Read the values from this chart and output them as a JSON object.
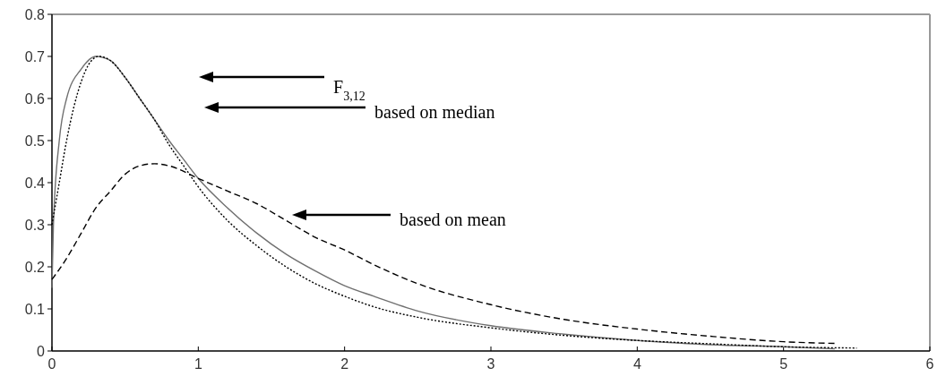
{
  "chart_data": {
    "type": "line",
    "xlim": [
      0,
      6
    ],
    "ylim": [
      0,
      0.8
    ],
    "xticks": [
      0,
      1,
      2,
      3,
      4,
      5,
      6
    ],
    "yticks": [
      0,
      0.1,
      0.2,
      0.3,
      0.4,
      0.5,
      0.6,
      0.7,
      0.8
    ],
    "grid": false,
    "marker": "none",
    "series": [
      {
        "color": "#707070",
        "line_style": "solid",
        "x": [
          0,
          0.01,
          0.05,
          0.1,
          0.2,
          0.3,
          0.4,
          0.5,
          0.6,
          0.7,
          0.8,
          0.9,
          1.0,
          1.2,
          1.4,
          1.6,
          1.8,
          2.0,
          2.2,
          2.5,
          3,
          3.5,
          4,
          4.5,
          5,
          5.35
        ],
        "values": [
          0.15,
          0.3,
          0.5,
          0.6,
          0.67,
          0.7,
          0.69,
          0.65,
          0.6,
          0.55,
          0.5,
          0.455,
          0.41,
          0.34,
          0.28,
          0.23,
          0.19,
          0.155,
          0.13,
          0.095,
          0.06,
          0.04,
          0.025,
          0.015,
          0.01,
          0.005
        ]
      },
      {
        "color": "#000000",
        "line_style": "dotted",
        "x": [
          0,
          0.05,
          0.1,
          0.2,
          0.25,
          0.32,
          0.4,
          0.5,
          0.6,
          0.7,
          0.8,
          0.9,
          1.0,
          1.2,
          1.4,
          1.6,
          1.8,
          2.0,
          2.2,
          2.5,
          3,
          3.5,
          4,
          4.5,
          5,
          5.5
        ],
        "values": [
          0.3,
          0.4,
          0.5,
          0.64,
          0.68,
          0.7,
          0.69,
          0.65,
          0.6,
          0.55,
          0.49,
          0.44,
          0.39,
          0.31,
          0.25,
          0.2,
          0.16,
          0.13,
          0.105,
          0.08,
          0.055,
          0.037,
          0.025,
          0.017,
          0.01,
          0.007
        ]
      },
      {
        "color": "#000000",
        "line_style": "dashed",
        "x": [
          0,
          0.1,
          0.2,
          0.3,
          0.4,
          0.5,
          0.6,
          0.7,
          0.8,
          1.0,
          1.2,
          1.4,
          1.6,
          1.8,
          2.0,
          2.2,
          2.5,
          3,
          3.5,
          4,
          4.5,
          5,
          5.35
        ],
        "values": [
          0.17,
          0.22,
          0.28,
          0.34,
          0.38,
          0.42,
          0.44,
          0.445,
          0.44,
          0.41,
          0.38,
          0.35,
          0.31,
          0.27,
          0.24,
          0.205,
          0.16,
          0.11,
          0.075,
          0.052,
          0.035,
          0.022,
          0.018
        ]
      }
    ],
    "annotations": [
      "F$_{3,12}$",
      "based on median",
      "based on mean"
    ]
  }
}
